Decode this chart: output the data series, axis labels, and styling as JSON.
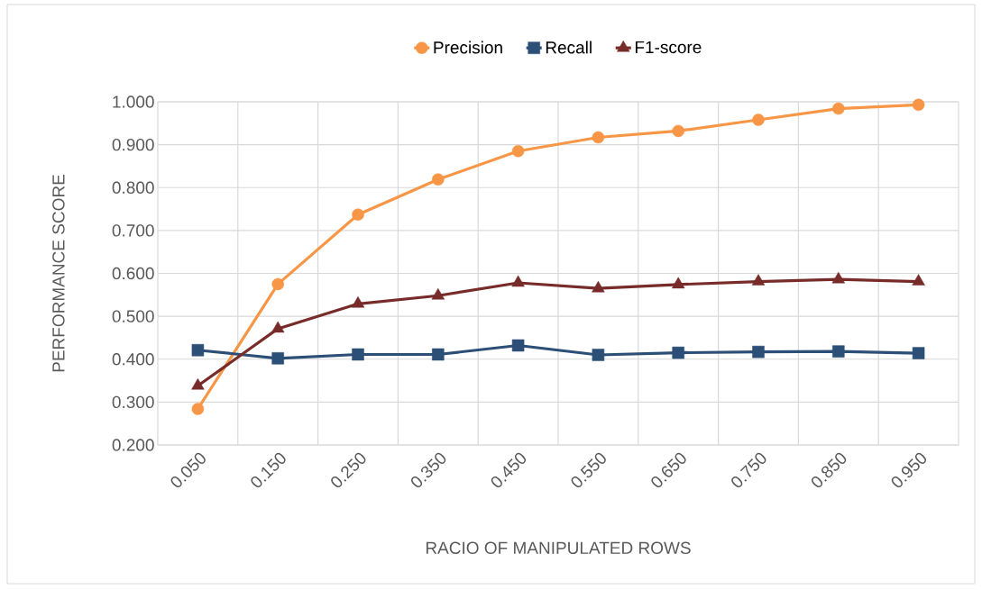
{
  "chart_data": {
    "type": "line",
    "xlabel": "RACIO OF MANIPULATED ROWS",
    "ylabel": "PERFORMANCE SCORE",
    "categories": [
      "0.050",
      "0.150",
      "0.250",
      "0.350",
      "0.450",
      "0.550",
      "0.650",
      "0.750",
      "0.850",
      "0.950"
    ],
    "series": [
      {
        "name": "Precision",
        "color": "#f79646",
        "marker": "circle",
        "values": [
          0.284,
          0.575,
          0.737,
          0.819,
          0.885,
          0.917,
          0.932,
          0.958,
          0.984,
          0.993
        ]
      },
      {
        "name": "Recall",
        "color": "#2c4f78",
        "marker": "square",
        "values": [
          0.421,
          0.402,
          0.411,
          0.411,
          0.432,
          0.41,
          0.415,
          0.417,
          0.418,
          0.414
        ]
      },
      {
        "name": "F1-score",
        "color": "#772c2a",
        "marker": "triangle",
        "values": [
          0.338,
          0.471,
          0.529,
          0.548,
          0.578,
          0.565,
          0.574,
          0.581,
          0.586,
          0.581
        ]
      }
    ],
    "ylim": [
      0.2,
      1.0
    ],
    "yticks": [
      {
        "value": 0.2,
        "label": "0.200"
      },
      {
        "value": 0.3,
        "label": "0.300"
      },
      {
        "value": 0.4,
        "label": "0.400"
      },
      {
        "value": 0.5,
        "label": "0.500"
      },
      {
        "value": 0.6,
        "label": "0.600"
      },
      {
        "value": 0.7,
        "label": "0.700"
      },
      {
        "value": 0.8,
        "label": "0.800"
      },
      {
        "value": 0.9,
        "label": "0.900"
      },
      {
        "value": 1.0,
        "label": "1.000"
      }
    ],
    "grid": true,
    "legend": "top",
    "line_style": "solid"
  }
}
